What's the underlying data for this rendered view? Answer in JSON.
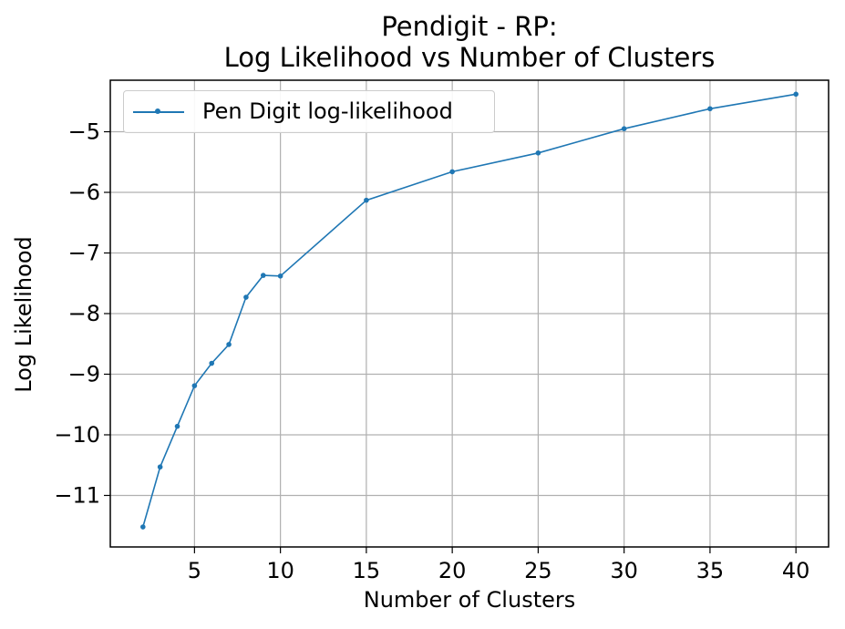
{
  "chart_data": {
    "type": "line",
    "title_lines": [
      "Pendigit - RP:",
      "Log Likelihood vs Number of Clusters"
    ],
    "xlabel": "Number of Clusters",
    "ylabel": "Log Likelihood",
    "x_ticks": [
      5,
      10,
      15,
      20,
      25,
      30,
      35,
      40
    ],
    "x_tick_labels": [
      "5",
      "10",
      "15",
      "20",
      "25",
      "30",
      "35",
      "40"
    ],
    "y_ticks": [
      -11,
      -10,
      -9,
      -8,
      -7,
      -6,
      -5
    ],
    "y_tick_labels": [
      "−11",
      "−10",
      "−9",
      "−8",
      "−7",
      "−6",
      "−5"
    ],
    "xlim": [
      0.1,
      41.9
    ],
    "ylim": [
      -11.85,
      -4.15
    ],
    "grid": true,
    "legend_position": "top-left",
    "series": [
      {
        "name": "Pen Digit log-likelihood",
        "color": "#1f77b4",
        "marker": "circle",
        "x": [
          2,
          3,
          4,
          5,
          6,
          7,
          8,
          9,
          10,
          15,
          20,
          25,
          30,
          35,
          40
        ],
        "y": [
          -11.52,
          -10.53,
          -9.86,
          -9.19,
          -8.82,
          -8.51,
          -7.73,
          -7.37,
          -7.38,
          -6.13,
          -5.66,
          -5.35,
          -4.95,
          -4.62,
          -4.38
        ]
      }
    ]
  }
}
